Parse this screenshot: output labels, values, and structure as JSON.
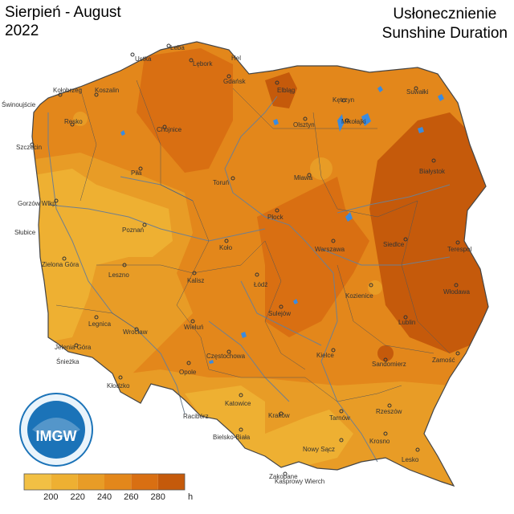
{
  "title_left": {
    "line1": "Sierpień - August",
    "line2": "2022"
  },
  "title_right": {
    "line1": "Usłonecznienie",
    "line2": "Sunshine Duration"
  },
  "logo": {
    "text": "IMGW",
    "ring_text": "INSTYTUT METEOROLOGII I GOSPODARKI WODNEJ - PAŃSTWOWY INSTYTUT BADAWCZY"
  },
  "legend": {
    "labels": [
      "200",
      "220",
      "240",
      "260",
      "280"
    ],
    "unit": "h",
    "colors": [
      "#f2c044",
      "#eeb032",
      "#e89c26",
      "#e3871b",
      "#d96f12",
      "#c55a0b"
    ]
  },
  "colors": {
    "lowest": "#f2c044",
    "low": "#eeb032",
    "mid": "#e89c26",
    "high": "#e3871b",
    "higher": "#d96f12",
    "highest": "#c55a0b",
    "river": "#6f7f8f",
    "border": "#555555",
    "lake": "#3a8be0"
  },
  "cities": [
    "Ustka",
    "Łeba",
    "Lębork",
    "Hel",
    "Gdańsk",
    "Elbląg",
    "Kołobrzeg",
    "Koszalin",
    "Świnoujście",
    "Resko",
    "Chojnice",
    "Olsztyn",
    "Kętrzyn",
    "Suwałki",
    "Mikołajki",
    "Szczecin",
    "Piła",
    "Toruń",
    "Mława",
    "Białystok",
    "Gorzów Wlkp.",
    "Płock",
    "Słubice",
    "Poznań",
    "Koło",
    "Warszawa",
    "Siedlce",
    "Terespol",
    "Zielona Góra",
    "Leszno",
    "Kalisz",
    "Łódź",
    "Kozienice",
    "Włodawa",
    "Sulejów",
    "Legnica",
    "Wrocław",
    "Wieluń",
    "Lublin",
    "Jelenia Góra",
    "Śnieżka",
    "Częstochowa",
    "Kielce",
    "Sandomierz",
    "Zamość",
    "Opole",
    "Kłodzko",
    "Katowice",
    "Racibórz",
    "Kraków",
    "Tarnów",
    "Rzeszów",
    "Bielsko-Biała",
    "Nowy Sącz",
    "Krosno",
    "Lesko",
    "Zakopane",
    "Kasprowy Wierch"
  ]
}
